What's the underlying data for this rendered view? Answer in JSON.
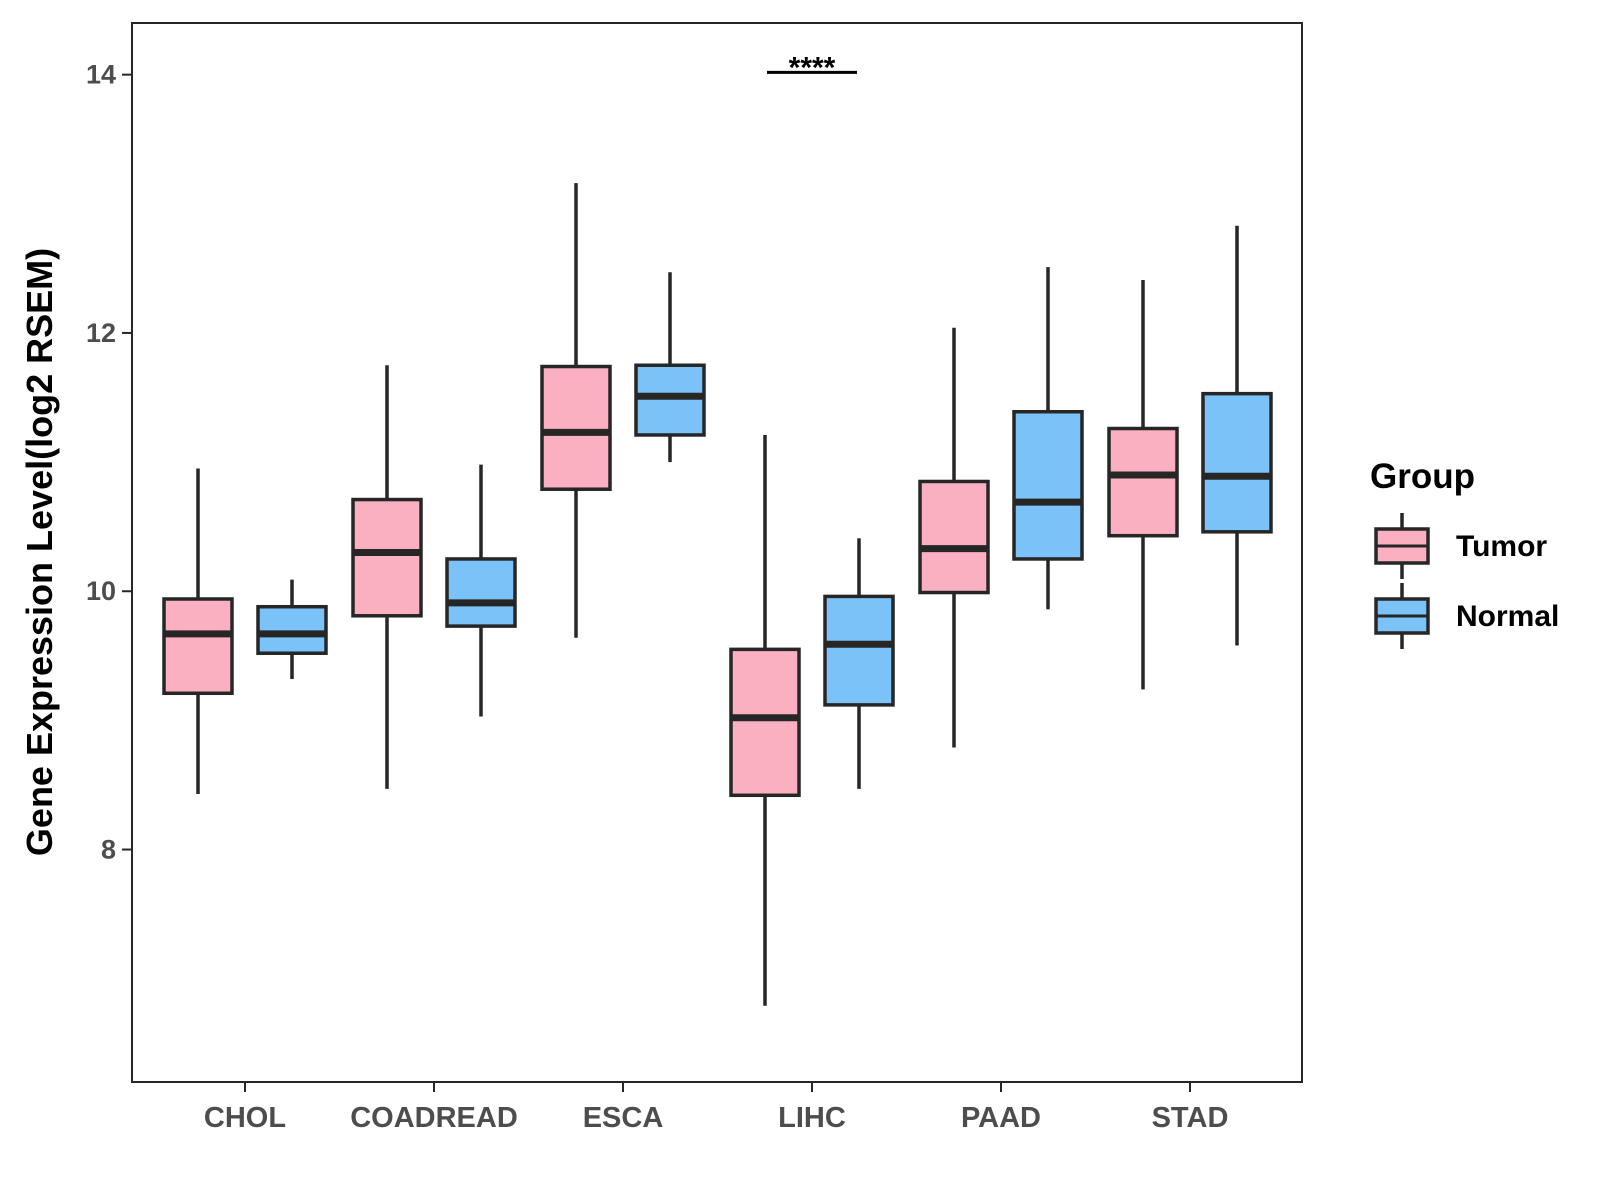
{
  "chart_data": {
    "type": "box",
    "title": "",
    "xlabel": "",
    "ylabel": "Gene Expression Level(log2 RSEM)",
    "ylim": [
      6.2,
      14.4
    ],
    "yticks": [
      8,
      10,
      12,
      14
    ],
    "categories": [
      "CHOL",
      "COADREAD",
      "ESCA",
      "LIHC",
      "PAAD",
      "STAD"
    ],
    "legend": {
      "title": "Group",
      "position": "right"
    },
    "grid": false,
    "colors": {
      "Tumor": "#FBB0C2",
      "Normal": "#7AC2F8",
      "outline": "#262626"
    },
    "series": [
      {
        "name": "Tumor",
        "boxes": [
          {
            "category": "CHOL",
            "whisker_low": 8.43,
            "q1": 9.21,
            "median": 9.67,
            "q3": 9.94,
            "whisker_high": 10.95
          },
          {
            "category": "COADREAD",
            "whisker_low": 8.47,
            "q1": 9.81,
            "median": 10.3,
            "q3": 10.71,
            "whisker_high": 11.75
          },
          {
            "category": "ESCA",
            "whisker_low": 9.64,
            "q1": 10.79,
            "median": 11.23,
            "q3": 11.74,
            "whisker_high": 13.16
          },
          {
            "category": "LIHC",
            "whisker_low": 6.79,
            "q1": 8.42,
            "median": 9.02,
            "q3": 9.55,
            "whisker_high": 11.21
          },
          {
            "category": "PAAD",
            "whisker_low": 8.79,
            "q1": 9.99,
            "median": 10.33,
            "q3": 10.85,
            "whisker_high": 12.04
          },
          {
            "category": "STAD",
            "whisker_low": 9.24,
            "q1": 10.43,
            "median": 10.9,
            "q3": 11.26,
            "whisker_high": 12.41
          }
        ]
      },
      {
        "name": "Normal",
        "boxes": [
          {
            "category": "CHOL",
            "whisker_low": 9.32,
            "q1": 9.52,
            "median": 9.67,
            "q3": 9.88,
            "whisker_high": 10.09
          },
          {
            "category": "COADREAD",
            "whisker_low": 9.03,
            "q1": 9.73,
            "median": 9.91,
            "q3": 10.25,
            "whisker_high": 10.98
          },
          {
            "category": "ESCA",
            "whisker_low": 11.0,
            "q1": 11.21,
            "median": 11.51,
            "q3": 11.75,
            "whisker_high": 12.47
          },
          {
            "category": "LIHC",
            "whisker_low": 8.47,
            "q1": 9.12,
            "median": 9.59,
            "q3": 9.96,
            "whisker_high": 10.41
          },
          {
            "category": "PAAD",
            "whisker_low": 9.86,
            "q1": 10.25,
            "median": 10.69,
            "q3": 11.39,
            "whisker_high": 12.51
          },
          {
            "category": "STAD",
            "whisker_low": 9.58,
            "q1": 10.46,
            "median": 10.89,
            "q3": 11.53,
            "whisker_high": 12.83
          }
        ]
      }
    ],
    "annotations": [
      {
        "category": "LIHC",
        "y": 14.01,
        "text": "****"
      }
    ]
  }
}
